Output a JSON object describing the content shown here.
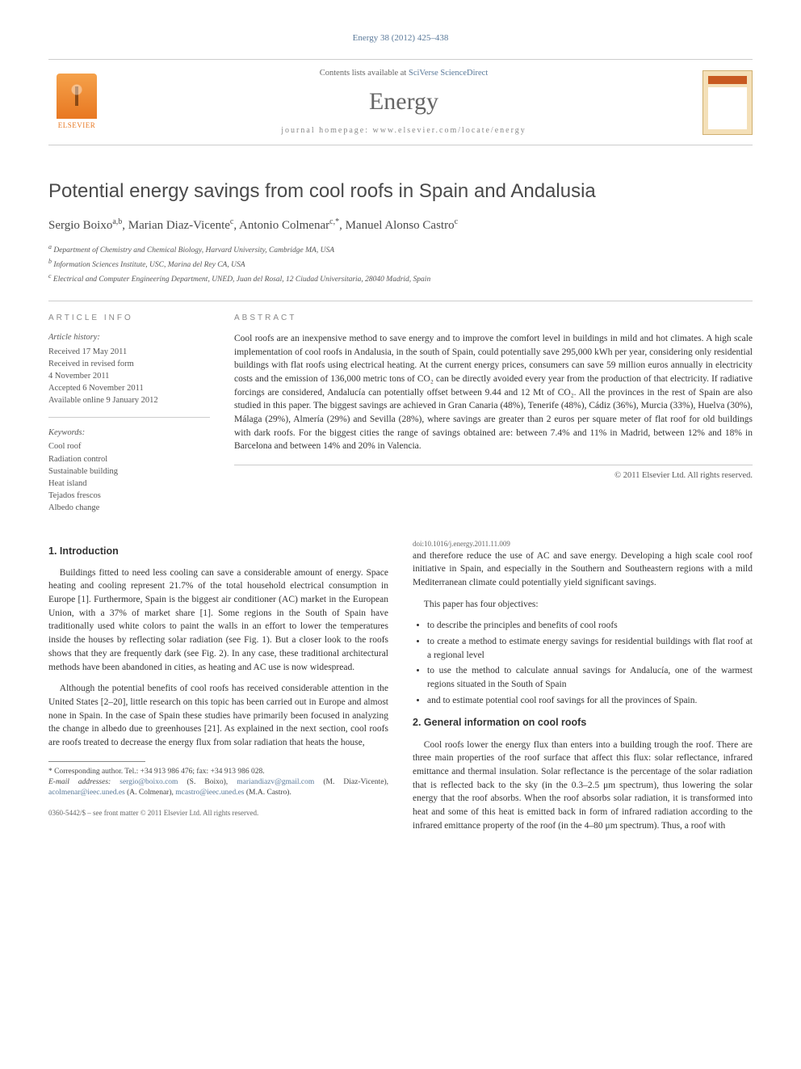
{
  "citation": "Energy 38 (2012) 425–438",
  "masthead": {
    "publisher": "ELSEVIER",
    "contents_prefix": "Contents lists available at ",
    "contents_link": "SciVerse ScienceDirect",
    "journal": "Energy",
    "homepage_label": "journal homepage: ",
    "homepage_url": "www.elsevier.com/locate/energy"
  },
  "title": "Potential energy savings from cool roofs in Spain and Andalusia",
  "authors_html": "Sergio Boixo",
  "authors": [
    {
      "name": "Sergio Boixo",
      "marks": "a,b"
    },
    {
      "name": "Marian Diaz-Vicente",
      "marks": "c"
    },
    {
      "name": "Antonio Colmenar",
      "marks": "c,*"
    },
    {
      "name": "Manuel Alonso Castro",
      "marks": "c"
    }
  ],
  "affiliations": [
    {
      "mark": "a",
      "text": "Department of Chemistry and Chemical Biology, Harvard University, Cambridge MA, USA"
    },
    {
      "mark": "b",
      "text": "Information Sciences Institute, USC, Marina del Rey CA, USA"
    },
    {
      "mark": "c",
      "text": "Electrical and Computer Engineering Department, UNED, Juan del Rosal, 12 Ciudad Universitaria, 28040 Madrid, Spain"
    }
  ],
  "article_info": {
    "label": "ARTICLE INFO",
    "history_label": "Article history:",
    "history": [
      "Received 17 May 2011",
      "Received in revised form",
      "4 November 2011",
      "Accepted 6 November 2011",
      "Available online 9 January 2012"
    ],
    "keywords_label": "Keywords:",
    "keywords": [
      "Cool roof",
      "Radiation control",
      "Sustainable building",
      "Heat island",
      "Tejados frescos",
      "Albedo change"
    ]
  },
  "abstract": {
    "label": "ABSTRACT",
    "text": "Cool roofs are an inexpensive method to save energy and to improve the comfort level in buildings in mild and hot climates. A high scale implementation of cool roofs in Andalusia, in the south of Spain, could potentially save 295,000 kWh per year, considering only residential buildings with flat roofs using electrical heating. At the current energy prices, consumers can save 59 million euros annually in electricity costs and the emission of 136,000 metric tons of CO₂ can be directly avoided every year from the production of that electricity. If radiative forcings are considered, Andalucía can potentially offset between 9.44 and 12 Mt of CO₂. All the provinces in the rest of Spain are also studied in this paper. The biggest savings are achieved in Gran Canaria (48%), Tenerife (48%), Cádiz (36%), Murcia (33%), Huelva (30%), Málaga (29%), Almería (29%) and Sevilla (28%), where savings are greater than 2 euros per square meter of flat roof for old buildings with dark roofs. For the biggest cities the range of savings obtained are: between 7.4% and 11% in Madrid, between 12% and 18% in Barcelona and between 14% and 20% in Valencia.",
    "copyright": "© 2011 Elsevier Ltd. All rights reserved."
  },
  "sections": {
    "intro": {
      "heading": "1. Introduction",
      "p1": "Buildings fitted to need less cooling can save a considerable amount of energy. Space heating and cooling represent 21.7% of the total household electrical consumption in Europe [1]. Furthermore, Spain is the biggest air conditioner (AC) market in the European Union, with a 37% of market share [1]. Some regions in the South of Spain have traditionally used white colors to paint the walls in an effort to lower the temperatures inside the houses by reflecting solar radiation (see Fig. 1). But a closer look to the roofs shows that they are frequently dark (see Fig. 2). In any case, these traditional architectural methods have been abandoned in cities, as heating and AC use is now widespread.",
      "p2": "Although the potential benefits of cool roofs has received considerable attention in the United States [2–20], little research on this topic has been carried out in Europe and almost none in Spain. In the case of Spain these studies have primarily been focused in analyzing the change in albedo due to greenhouses [21]. As explained in the next section, cool roofs are roofs treated to decrease the energy flux from solar radiation that heats the house,",
      "p3": "and therefore reduce the use of AC and save energy. Developing a high scale cool roof initiative in Spain, and especially in the Southern and Southeastern regions with a mild Mediterranean climate could potentially yield significant savings.",
      "objectives_intro": "This paper has four objectives:",
      "objectives": [
        "to describe the principles and benefits of cool roofs",
        "to create a method to estimate energy savings for residential buildings with flat roof at a regional level",
        "to use the method to calculate annual savings for Andalucía, one of the warmest regions situated in the South of Spain",
        "and to estimate potential cool roof savings for all the provinces of Spain."
      ]
    },
    "general": {
      "heading": "2. General information on cool roofs",
      "p1": "Cool roofs lower the energy flux than enters into a building trough the roof. There are three main properties of the roof surface that affect this flux: solar reflectance, infrared emittance and thermal insulation. Solar reflectance is the percentage of the solar radiation that is reflected back to the sky (in the 0.3–2.5 μm spectrum), thus lowering the solar energy that the roof absorbs. When the roof absorbs solar radiation, it is transformed into heat and some of this heat is emitted back in form of infrared radiation according to the infrared emittance property of the roof (in the 4–80 μm spectrum). Thus, a roof with"
    }
  },
  "footnotes": {
    "corresponding": "* Corresponding author. Tel.: +34 913 986 476; fax: +34 913 986 028.",
    "emails_label": "E-mail addresses: ",
    "emails": [
      {
        "addr": "sergio@boixo.com",
        "who": "(S. Boixo)"
      },
      {
        "addr": "mariandiazv@gmail.com",
        "who": "(M. Diaz-Vicente)"
      },
      {
        "addr": "acolmenar@ieec.uned.es",
        "who": "(A. Colmenar)"
      },
      {
        "addr": "mcastro@ieec.uned.es",
        "who": "(M.A. Castro)."
      }
    ]
  },
  "bottom": {
    "line1": "0360-5442/$ – see front matter © 2011 Elsevier Ltd. All rights reserved.",
    "line2": "doi:10.1016/j.energy.2011.11.009"
  },
  "colors": {
    "link": "#5b7a9a",
    "text": "#333333",
    "muted": "#666666",
    "rule": "#cccccc",
    "elsevier_orange": "#e87822"
  }
}
